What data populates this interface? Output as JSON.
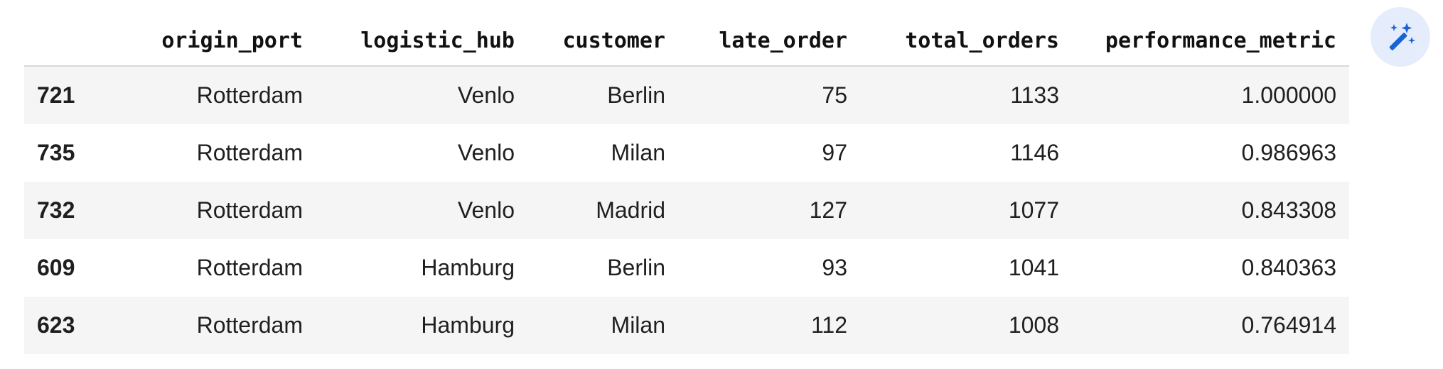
{
  "table": {
    "columns": [
      "origin_port",
      "logistic_hub",
      "customer",
      "late_order",
      "total_orders",
      "performance_metric"
    ],
    "rows": [
      {
        "index": "721",
        "origin_port": "Rotterdam",
        "logistic_hub": "Venlo",
        "customer": "Berlin",
        "late_order": "75",
        "total_orders": "1133",
        "performance_metric": "1.000000"
      },
      {
        "index": "735",
        "origin_port": "Rotterdam",
        "logistic_hub": "Venlo",
        "customer": "Milan",
        "late_order": "97",
        "total_orders": "1146",
        "performance_metric": "0.986963"
      },
      {
        "index": "732",
        "origin_port": "Rotterdam",
        "logistic_hub": "Venlo",
        "customer": "Madrid",
        "late_order": "127",
        "total_orders": "1077",
        "performance_metric": "0.843308"
      },
      {
        "index": "609",
        "origin_port": "Rotterdam",
        "logistic_hub": "Hamburg",
        "customer": "Berlin",
        "late_order": "93",
        "total_orders": "1041",
        "performance_metric": "0.840363"
      },
      {
        "index": "623",
        "origin_port": "Rotterdam",
        "logistic_hub": "Hamburg",
        "customer": "Milan",
        "late_order": "112",
        "total_orders": "1008",
        "performance_metric": "0.764914"
      }
    ]
  },
  "icons": {
    "magic_button": "magic-wand-sparkle-icon"
  },
  "colors": {
    "stripe": "#f5f5f5",
    "header_rule": "#d9d9d9",
    "magic_bg": "#e5ecfb",
    "magic_icon": "#1a63d6"
  }
}
